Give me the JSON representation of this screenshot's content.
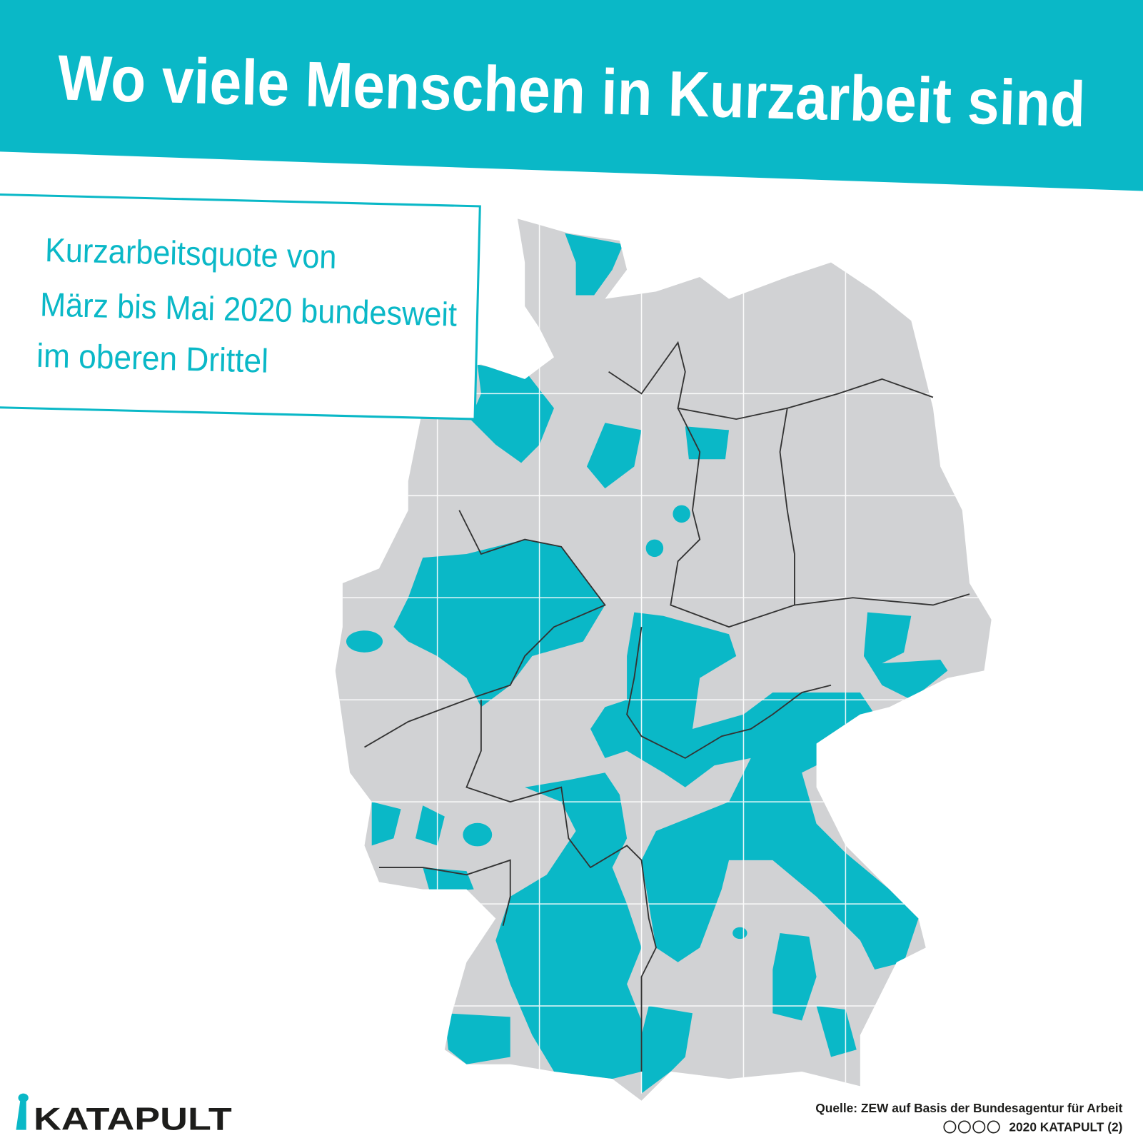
{
  "header": {
    "title": "Wo viele Menschen in Kurzarbeit sind"
  },
  "legend": {
    "lines": [
      "Kurzarbeitsquote von",
      "März bis Mai 2020 bundesweit",
      "im oberen Drittel"
    ]
  },
  "footer": {
    "logo": "KATAPULT",
    "source": "Quelle: ZEW auf Basis der Bundesagentur für Arbeit",
    "copyright": "2020 KATAPULT (2)"
  }
}
